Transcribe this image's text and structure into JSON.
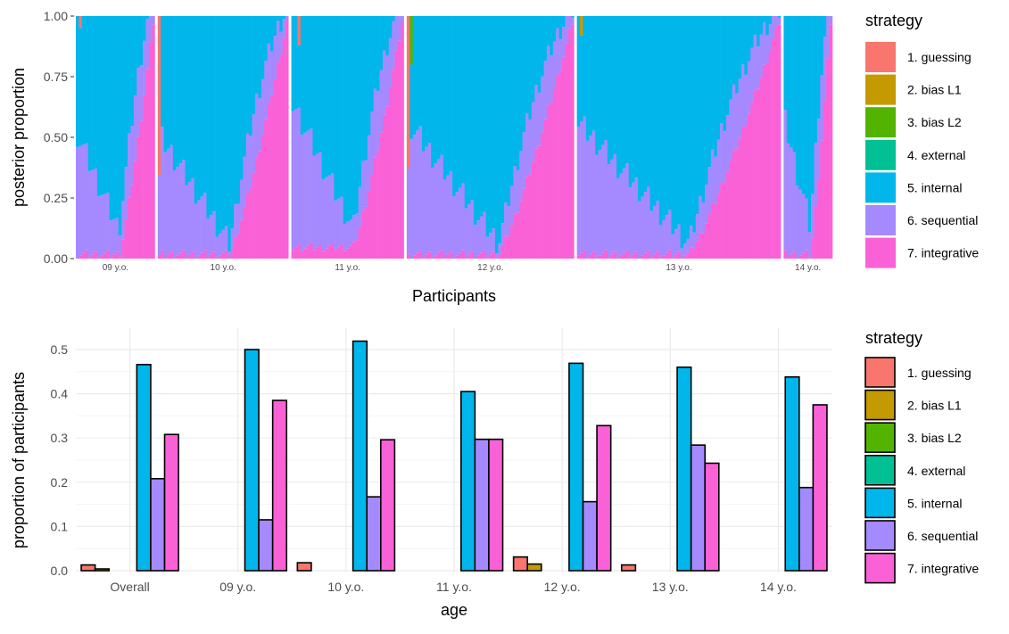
{
  "strategies": [
    "1. guessing",
    "2. bias L1",
    "3. bias L2",
    "4. external",
    "5. internal",
    "6. sequential",
    "7. integrative"
  ],
  "colors": {
    "1. guessing": "#F8766D",
    "2. bias L1": "#C49A00",
    "3. bias L2": "#53B400",
    "4. external": "#00C094",
    "5. internal": "#00B6EB",
    "6. sequential": "#A58AFF",
    "7. integrative": "#FB61D7"
  },
  "chart_data": [
    {
      "type": "area",
      "subtype": "stacked-bar-per-participant",
      "ylabel": "posterior proportion",
      "xlabel": "Participants",
      "ylim": [
        0,
        1
      ],
      "yticks": [
        "0.00",
        "0.25",
        "0.50",
        "0.75",
        "1.00"
      ],
      "legend_title": "strategy",
      "legend_position": "right",
      "grid": false,
      "groups": [
        {
          "label": "09 y.o.",
          "n": 26,
          "int_start": 0.02,
          "int_end": 0.55,
          "seq_start": 0.5,
          "seq_end": 0.1,
          "spikes": [
            {
              "i": 1,
              "s": "1. guessing",
              "v": 0.05
            }
          ]
        },
        {
          "label": "10 y.o.",
          "n": 43,
          "int_start": 0.02,
          "int_end": 0.58,
          "seq_start": 0.5,
          "seq_end": 0.05,
          "spikes": [
            {
              "i": 0,
              "s": "1. guessing",
              "v": 1.0
            }
          ]
        },
        {
          "label": "11 y.o.",
          "n": 37,
          "int_start": 0.05,
          "int_end": 0.52,
          "seq_start": 0.6,
          "seq_end": 0.08,
          "spikes": [
            {
              "i": 2,
              "s": "1. guessing",
              "v": 0.12
            }
          ]
        },
        {
          "label": "12 y.o.",
          "n": 55,
          "int_start": 0.02,
          "int_end": 0.55,
          "seq_start": 0.55,
          "seq_end": 0.05,
          "spikes": [
            {
              "i": 0,
              "s": "1. guessing",
              "v": 1.0
            },
            {
              "i": 1,
              "s": "3. bias L2",
              "v": 0.2
            }
          ]
        },
        {
          "label": "13 y.o.",
          "n": 67,
          "int_start": 0.02,
          "int_end": 0.55,
          "seq_start": 0.55,
          "seq_end": 0.05,
          "spikes": [
            {
              "i": 1,
              "s": "2. bias L1",
              "v": 0.08
            }
          ]
        },
        {
          "label": "14 y.o.",
          "n": 16,
          "int_start": 0.02,
          "int_end": 0.55,
          "seq_start": 0.55,
          "seq_end": 0.12,
          "spikes": []
        }
      ]
    },
    {
      "type": "bar",
      "xlabel": "age",
      "ylabel": "proportion of participants",
      "ylim": [
        0,
        0.55
      ],
      "yticks": [
        "0.0",
        "0.1",
        "0.2",
        "0.3",
        "0.4",
        "0.5"
      ],
      "legend_title": "strategy",
      "legend_position": "right",
      "grid": true,
      "categories": [
        "Overall",
        "09 y.o.",
        "10 y.o.",
        "11 y.o.",
        "12 y.o.",
        "13 y.o.",
        "14 y.o."
      ],
      "series": [
        {
          "name": "1. guessing",
          "values": [
            0.013,
            0,
            0.018,
            0,
            0.031,
            0.013,
            0
          ]
        },
        {
          "name": "2. bias L1",
          "values": [
            0.004,
            0,
            0,
            0,
            0.015,
            0,
            0
          ]
        },
        {
          "name": "3. bias L2",
          "values": [
            0,
            0,
            0,
            0,
            0,
            0,
            0
          ]
        },
        {
          "name": "4. external",
          "values": [
            0,
            0,
            0,
            0,
            0,
            0,
            0
          ]
        },
        {
          "name": "5. internal",
          "values": [
            0.466,
            0.5,
            0.519,
            0.405,
            0.469,
            0.46,
            0.438
          ]
        },
        {
          "name": "6. sequential",
          "values": [
            0.208,
            0.115,
            0.167,
            0.297,
            0.156,
            0.284,
            0.188
          ]
        },
        {
          "name": "7. integrative",
          "values": [
            0.308,
            0.385,
            0.296,
            0.297,
            0.328,
            0.243,
            0.375
          ]
        }
      ]
    }
  ]
}
